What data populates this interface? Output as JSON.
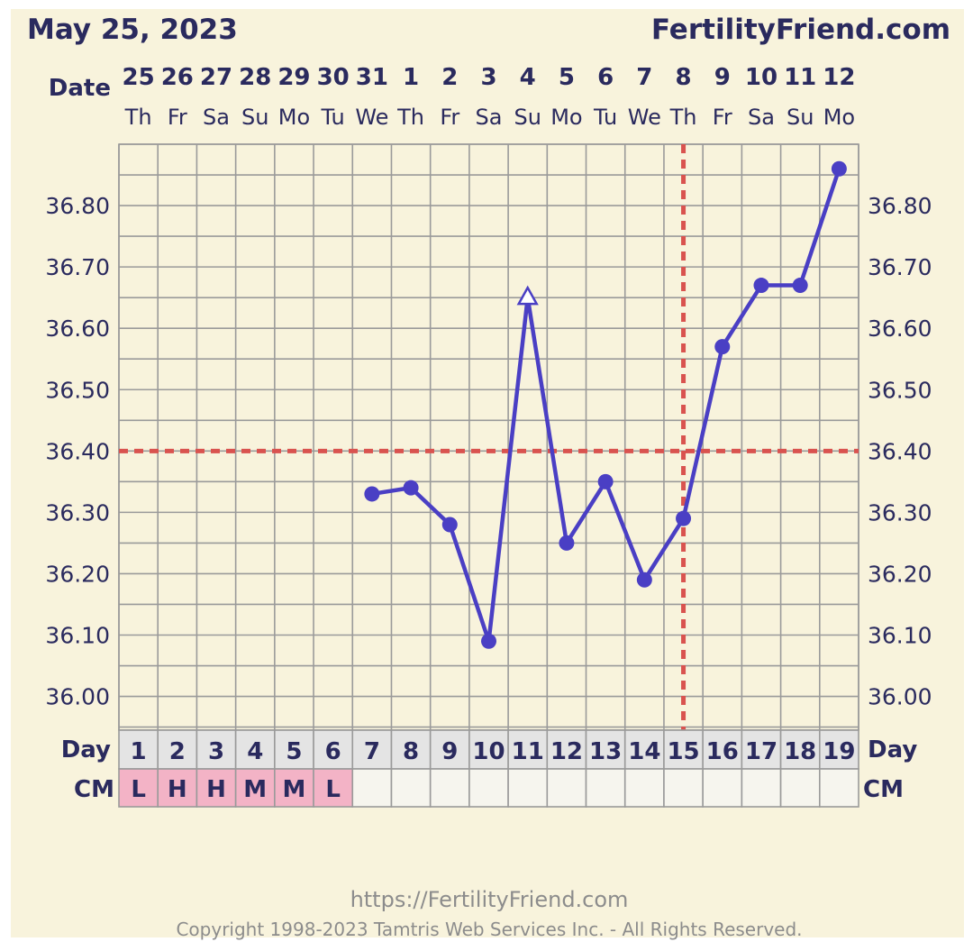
{
  "header": {
    "date_title": "May 25, 2023",
    "site_name": "FertilityFriend.com",
    "date_row_label": "Date"
  },
  "footer": {
    "url": "https://FertilityFriend.com",
    "copyright": "Copyright 1998-2023 Tamtris Web Services Inc. - All Rights Reserved."
  },
  "table": {
    "day_label": "Day",
    "cm_label": "CM"
  },
  "colors": {
    "background": "#f8f3dc",
    "grid": "#9a9a9a",
    "line": "#4a3fc4",
    "threshold": "#d9534f",
    "text": "#2a2a5e",
    "cm_fill": "#f3b3c6",
    "cell_fill": "#f6f5ee",
    "day_fill": "#e4e4e4"
  },
  "chart_data": {
    "type": "line",
    "dates": [
      "25",
      "26",
      "27",
      "28",
      "29",
      "30",
      "31",
      "1",
      "2",
      "3",
      "4",
      "5",
      "6",
      "7",
      "8",
      "9",
      "10",
      "11",
      "12"
    ],
    "weekdays": [
      "Th",
      "Fr",
      "Sa",
      "Su",
      "Mo",
      "Tu",
      "We",
      "Th",
      "Fr",
      "Sa",
      "Su",
      "Mo",
      "Tu",
      "We",
      "Th",
      "Fr",
      "Sa",
      "Su",
      "Mo"
    ],
    "cycle_days": [
      "1",
      "2",
      "3",
      "4",
      "5",
      "6",
      "7",
      "8",
      "9",
      "10",
      "11",
      "12",
      "13",
      "14",
      "15",
      "16",
      "17",
      "18",
      "19"
    ],
    "cervical_mucus": [
      "L",
      "H",
      "H",
      "M",
      "M",
      "L",
      "",
      "",
      "",
      "",
      "",
      "",
      "",
      "",
      "",
      "",
      "",
      "",
      ""
    ],
    "y_ticks": [
      "36.00",
      "36.10",
      "36.20",
      "36.30",
      "36.40",
      "36.50",
      "36.60",
      "36.70",
      "36.80"
    ],
    "ylim": [
      35.945,
      36.9
    ],
    "series": [
      {
        "values": [
          null,
          null,
          null,
          null,
          null,
          null,
          36.33,
          36.34,
          36.28,
          36.09,
          36.65,
          36.25,
          36.35,
          36.19,
          36.29,
          36.57,
          36.67,
          36.67,
          36.86
        ],
        "markers": [
          "",
          "",
          "",
          "",
          "",
          "",
          "dot",
          "dot",
          "dot",
          "dot",
          "open-triangle",
          "dot",
          "dot",
          "dot",
          "dot",
          "dot",
          "dot",
          "dot",
          "dot"
        ]
      }
    ],
    "coverline": 36.4,
    "ovulation_day": "15"
  }
}
